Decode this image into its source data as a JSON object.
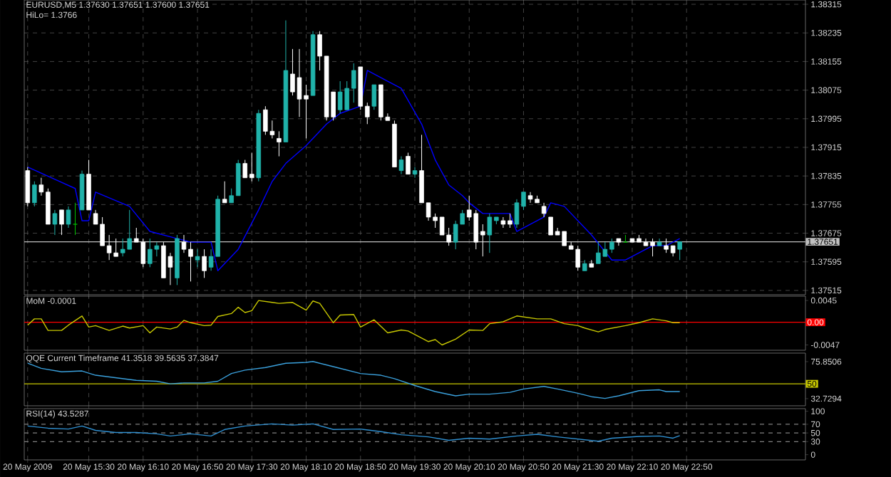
{
  "chart_data": [
    {
      "type": "candlestick",
      "title": "EURUSD,M5  1.37630 1.37651 1.37600 1.37651",
      "annotations": [
        "HiLo= 1.3766"
      ],
      "categories": [
        null,
        null,
        null,
        null,
        null,
        null,
        null,
        null,
        null,
        null,
        null,
        null,
        null,
        null,
        null,
        null,
        null,
        null,
        null,
        null,
        null,
        null,
        null,
        null,
        null,
        null,
        null,
        null,
        null,
        null,
        null,
        null,
        null,
        null,
        null,
        null,
        null,
        null,
        null,
        null,
        null,
        null,
        null,
        null,
        null,
        null,
        null,
        null,
        null,
        null,
        null,
        null,
        null,
        null,
        null,
        null,
        null,
        null,
        null,
        null,
        null,
        null,
        null,
        null,
        null,
        null,
        null,
        null,
        null,
        null,
        null,
        null,
        null,
        null,
        null,
        null,
        null,
        null,
        null,
        null,
        null,
        null,
        null,
        null,
        null,
        null,
        null,
        null,
        null,
        null,
        null,
        null,
        null,
        null,
        null,
        null,
        null,
        null,
        null,
        null,
        null,
        null,
        null,
        null,
        null,
        null,
        null,
        null,
        null,
        null,
        null,
        null,
        null,
        null,
        null
      ],
      "ohlc": [
        [
          1.3785,
          1.3786,
          1.3775,
          1.3776
        ],
        [
          1.3776,
          1.3782,
          1.3775,
          1.3781
        ],
        [
          1.3781,
          1.3783,
          1.3778,
          1.3779
        ],
        [
          1.3779,
          1.378,
          1.377,
          1.377
        ],
        [
          1.377,
          1.3774,
          1.3767,
          1.3773
        ],
        [
          1.3774,
          1.3774,
          1.3767,
          1.377
        ],
        [
          1.377,
          1.3775,
          1.3769,
          1.3774
        ],
        [
          1.377,
          1.3776,
          1.3767,
          1.377
        ],
        [
          1.3774,
          1.3785,
          1.3774,
          1.3784
        ],
        [
          1.3784,
          1.3788,
          1.3774,
          1.3774
        ],
        [
          1.3773,
          1.3774,
          1.377,
          1.377
        ],
        [
          1.377,
          1.3772,
          1.3764,
          1.3764
        ],
        [
          1.3764,
          1.3767,
          1.376,
          1.3762
        ],
        [
          1.3762,
          1.3766,
          1.3761,
          1.3761
        ],
        [
          1.3762,
          1.3766,
          1.3761,
          1.3763
        ],
        [
          1.3763,
          1.3774,
          1.3763,
          1.3766
        ],
        [
          1.3766,
          1.3769,
          1.3765,
          1.3765
        ],
        [
          1.3765,
          1.3766,
          1.3758,
          1.3759
        ],
        [
          1.3759,
          1.3766,
          1.3758,
          1.3763
        ],
        [
          1.3763,
          1.3765,
          1.3761,
          1.3764
        ],
        [
          1.3764,
          1.3765,
          1.3755,
          1.3755
        ],
        [
          1.3761,
          1.3762,
          1.3753,
          1.3758
        ],
        [
          1.3755,
          1.3767,
          1.3753,
          1.3766
        ],
        [
          1.3765,
          1.3767,
          1.3762,
          1.3763
        ],
        [
          1.3763,
          1.3765,
          1.3754,
          1.3761
        ],
        [
          1.376,
          1.3763,
          1.3758,
          1.3761
        ],
        [
          1.3761,
          1.3763,
          1.3755,
          1.3757
        ],
        [
          1.3758,
          1.3763,
          1.3757,
          1.3761
        ],
        [
          1.3761,
          1.3778,
          1.3761,
          1.3777
        ],
        [
          1.3777,
          1.3782,
          1.3776,
          1.3776
        ],
        [
          1.3776,
          1.378,
          1.3776,
          1.3778
        ],
        [
          1.3778,
          1.3788,
          1.3778,
          1.3787
        ],
        [
          1.3787,
          1.3788,
          1.3783,
          1.3783
        ],
        [
          1.3784,
          1.379,
          1.3782,
          1.3783
        ],
        [
          1.3783,
          1.3802,
          1.3782,
          1.3801
        ],
        [
          1.3802,
          1.3803,
          1.3795,
          1.3796
        ],
        [
          1.3796,
          1.3799,
          1.3794,
          1.3795
        ],
        [
          1.3794,
          1.3796,
          1.3789,
          1.3793
        ],
        [
          1.3793,
          1.3827,
          1.3793,
          1.3813
        ],
        [
          1.3812,
          1.3819,
          1.3806,
          1.3807
        ],
        [
          1.3811,
          1.3819,
          1.38,
          1.3805
        ],
        [
          1.3806,
          1.3809,
          1.3794,
          1.3805
        ],
        [
          1.3806,
          1.3824,
          1.3806,
          1.3823
        ],
        [
          1.3823,
          1.3824,
          1.3813,
          1.3817
        ],
        [
          1.3817,
          1.3817,
          1.3799,
          1.38
        ],
        [
          1.3807,
          1.3807,
          1.3799,
          1.38
        ],
        [
          1.3802,
          1.381,
          1.3801,
          1.3807
        ],
        [
          1.3802,
          1.381,
          1.3802,
          1.3808
        ],
        [
          1.3808,
          1.3815,
          1.3804,
          1.3813
        ],
        [
          1.3814,
          1.3814,
          1.3802,
          1.3803
        ],
        [
          1.3803,
          1.3804,
          1.3798,
          1.38
        ],
        [
          1.3803,
          1.3809,
          1.3802,
          1.3809
        ],
        [
          1.3809,
          1.3809,
          1.3799,
          1.38
        ],
        [
          1.38,
          1.3801,
          1.3799,
          1.3799
        ],
        [
          1.3798,
          1.3799,
          1.3786,
          1.3786
        ],
        [
          1.3785,
          1.3789,
          1.3784,
          1.3788
        ],
        [
          1.3789,
          1.379,
          1.3784,
          1.3784
        ],
        [
          1.3784,
          1.3786,
          1.3783,
          1.3785
        ],
        [
          1.3785,
          1.3795,
          1.3776,
          1.3776
        ],
        [
          1.3776,
          1.3776,
          1.3771,
          1.3772
        ],
        [
          1.3772,
          1.3773,
          1.3769,
          1.3771
        ],
        [
          1.3772,
          1.3772,
          1.3767,
          1.3767
        ],
        [
          1.3767,
          1.3769,
          1.3764,
          1.3765
        ],
        [
          1.3765,
          1.3771,
          1.3763,
          1.377
        ],
        [
          1.377,
          1.3774,
          1.377,
          1.3773
        ],
        [
          1.3774,
          1.3778,
          1.3771,
          1.3772
        ],
        [
          1.3773,
          1.3774,
          1.3763,
          1.3765
        ],
        [
          1.3768,
          1.377,
          1.3761,
          1.3767
        ],
        [
          1.3767,
          1.3773,
          1.3762,
          1.3772
        ],
        [
          1.3771,
          1.3772,
          1.377,
          1.3772
        ],
        [
          1.3771,
          1.3772,
          1.3769,
          1.377
        ],
        [
          1.3771,
          1.3773,
          1.3769,
          1.377
        ],
        [
          1.377,
          1.3777,
          1.3769,
          1.3776
        ],
        [
          1.3775,
          1.3779,
          1.3774,
          1.3779
        ],
        [
          1.3778,
          1.3779,
          1.3776,
          1.3777
        ],
        [
          1.3777,
          1.3778,
          1.3776,
          1.3776
        ],
        [
          1.3775,
          1.3776,
          1.3772,
          1.3773
        ],
        [
          1.3772,
          1.3772,
          1.3767,
          1.3767
        ],
        [
          1.3768,
          1.3769,
          1.3767,
          1.3767
        ],
        [
          1.3768,
          1.3768,
          1.3764,
          1.3764
        ],
        [
          1.3764,
          1.3765,
          1.3763,
          1.3763
        ],
        [
          1.3763,
          1.3764,
          1.3757,
          1.3758
        ],
        [
          1.3757,
          1.376,
          1.3757,
          1.3759
        ],
        [
          1.3759,
          1.376,
          1.3758,
          1.3758
        ],
        [
          1.3759,
          1.3765,
          1.3759,
          1.3762
        ],
        [
          1.3761,
          1.3765,
          1.3761,
          1.3763
        ],
        [
          1.3763,
          1.3766,
          1.3762,
          1.3765
        ],
        [
          1.3766,
          1.3766,
          1.3764,
          1.3765
        ],
        [
          1.3765,
          1.3767,
          1.3765,
          1.3765
        ],
        [
          1.3766,
          1.3766,
          1.3765,
          1.3765
        ],
        [
          1.3766,
          1.3767,
          1.3765,
          1.3765
        ],
        [
          1.3765,
          1.3766,
          1.3764,
          1.3764
        ],
        [
          1.3765,
          1.3766,
          1.3761,
          1.3764
        ],
        [
          1.3764,
          1.3766,
          1.3764,
          1.3765
        ],
        [
          1.3764,
          1.3766,
          1.3762,
          1.3763
        ],
        [
          1.3764,
          1.3764,
          1.3761,
          1.3762
        ],
        [
          1.3763,
          1.37651,
          1.376,
          1.37651
        ],
        null,
        null,
        null,
        null,
        null,
        null,
        null,
        null,
        null,
        null,
        null,
        null,
        null,
        null,
        null,
        null,
        null,
        null
      ],
      "colors": [
        "#ffffff",
        "#20b2aa",
        "#ffffff",
        "#ffffff",
        "#20b2aa",
        "#ffffff",
        "#20b2aa",
        "#00c000",
        "#20b2aa",
        "#ffffff",
        "#ffffff",
        "#ffffff",
        "#ffffff",
        "#ffffff",
        "#20b2aa",
        "#20b2aa",
        "#ffffff",
        "#ffffff",
        "#20b2aa",
        "#20b2aa",
        "#ffffff",
        "#ffffff",
        "#20b2aa",
        "#ffffff",
        "#ffffff",
        "#20b2aa",
        "#ffffff",
        "#20b2aa",
        "#20b2aa",
        "#ffffff",
        "#20b2aa",
        "#20b2aa",
        "#ffffff",
        "#ffffff",
        "#20b2aa",
        "#ffffff",
        "#ffffff",
        "#ffffff",
        "#20b2aa",
        "#ffffff",
        "#ffffff",
        "#ffffff",
        "#20b2aa",
        "#ffffff",
        "#ffffff",
        "#ffffff",
        "#20b2aa",
        "#20b2aa",
        "#20b2aa",
        "#ffffff",
        "#ffffff",
        "#20b2aa",
        "#ffffff",
        "#ffffff",
        "#ffffff",
        "#20b2aa",
        "#ffffff",
        "#20b2aa",
        "#ffffff",
        "#ffffff",
        "#ffffff",
        "#ffffff",
        "#ffffff",
        "#20b2aa",
        "#20b2aa",
        "#ffffff",
        "#ffffff",
        "#ffffff",
        "#20b2aa",
        "#20b2aa",
        "#ffffff",
        "#ffffff",
        "#20b2aa",
        "#20b2aa",
        "#ffffff",
        "#ffffff",
        "#ffffff",
        "#ffffff",
        "#ffffff",
        "#ffffff",
        "#ffffff",
        "#ffffff",
        "#20b2aa",
        "#ffffff",
        "#20b2aa",
        "#20b2aa",
        "#20b2aa",
        "#ffffff",
        "#00c000",
        "#ffffff",
        "#ffffff",
        "#ffffff",
        "#ffffff",
        "#20b2aa",
        "#ffffff",
        "#ffffff",
        "#20b2aa",
        null,
        null,
        null,
        null,
        null,
        null,
        null,
        null,
        null,
        null,
        null,
        null,
        null,
        null,
        null,
        null,
        null,
        null
      ],
      "series": [
        {
          "type": "line",
          "color": "#0000ff",
          "values": [
            1.3786,
            null,
            null,
            null,
            null,
            null,
            null,
            1.378,
            1.3771,
            1.3771,
            1.3779,
            null,
            null,
            null,
            null,
            1.3775,
            null,
            null,
            1.3768,
            null,
            null,
            null,
            1.3766,
            null,
            1.3765,
            null,
            null,
            1.3765,
            1.3757,
            null,
            null,
            1.3763,
            null,
            null,
            1.3774,
            null,
            1.3782,
            null,
            1.3787,
            null,
            null,
            1.3792,
            null,
            null,
            1.3798,
            null,
            1.3801,
            null,
            null,
            1.3803,
            1.3813,
            null,
            null,
            1.381,
            null,
            1.3808,
            null,
            null,
            1.3798,
            null,
            1.3788,
            null,
            1.3781,
            null,
            1.3778,
            1.3776,
            null,
            1.3773,
            null,
            null,
            null,
            1.3773,
            1.3768,
            null,
            null,
            null,
            1.3772,
            1.3776,
            null,
            1.3775,
            null,
            null,
            null,
            1.3767,
            null,
            null,
            1.376,
            null,
            1.376,
            null,
            null,
            null,
            1.3764,
            null,
            1.3764,
            null,
            1.3766,
            null,
            null,
            null,
            null,
            null,
            null,
            null,
            null,
            null,
            null,
            null,
            null,
            null,
            null,
            null,
            null,
            null,
            null
          ]
        }
      ],
      "ylim": [
        1.37503,
        1.38327
      ],
      "yticks": [
        1.38315,
        1.38235,
        1.38155,
        1.38075,
        1.37995,
        1.37915,
        1.37835,
        1.37755,
        1.37675,
        1.37595,
        1.37515
      ],
      "ref_lines": [
        {
          "axis": "y",
          "value": 1.37651,
          "label": "1.37651",
          "color": "#c0c0c0"
        }
      ],
      "grid": true,
      "tick_labels": "y"
    },
    {
      "type": "line",
      "title": "MoM -0.0001",
      "color": "#c8c800",
      "categories": [
        null,
        null,
        null,
        null,
        null,
        null,
        null,
        null,
        null,
        null,
        null,
        null,
        null,
        null,
        null,
        null,
        null,
        null,
        null,
        null,
        null,
        null,
        null,
        null,
        null,
        null,
        null,
        null,
        null,
        null,
        null,
        null,
        null,
        null,
        null,
        null,
        null,
        null,
        null,
        null,
        null,
        null,
        null,
        null,
        null,
        null,
        null,
        null,
        null,
        null,
        null,
        null,
        null,
        null,
        null,
        null,
        null,
        null,
        null,
        null,
        null,
        null,
        null,
        null,
        null,
        null,
        null,
        null,
        null,
        null,
        null,
        null,
        null,
        null,
        null,
        null,
        null,
        null,
        null,
        null,
        null,
        null,
        null,
        null,
        null,
        null,
        null,
        null,
        null,
        null,
        null,
        null,
        null,
        null,
        null,
        null,
        null,
        null,
        null,
        null,
        null,
        null,
        null,
        null,
        null,
        null,
        null,
        null,
        null,
        null,
        null,
        null,
        null,
        null,
        null
      ],
      "values": [
        -0.0006,
        0.0007,
        0.0007,
        -0.0017,
        null,
        -0.0017,
        -0.0006,
        null,
        0.0013,
        -0.001,
        -0.0007,
        null,
        -0.0017,
        null,
        -0.0008,
        -0.0012,
        null,
        -0.0007,
        -0.0022,
        -0.001,
        null,
        -0.0014,
        -0.001,
        0.0004,
        -0.0001,
        null,
        -0.0007,
        -0.0006,
        0.0012,
        null,
        0.0018,
        0.0031,
        0.002,
        0.0024,
        0.0045,
        null,
        0.0041,
        0.0039,
        null,
        0.0041,
        null,
        0.0025,
        0.0044,
        0.0039,
        null,
        -0.0001,
        0.0015,
        null,
        0.0016,
        -0.001,
        null,
        0.0005,
        null,
        -0.0022,
        null,
        -0.0016,
        -0.0018,
        null,
        null,
        -0.004,
        -0.0036,
        -0.0047,
        null,
        -0.0035,
        null,
        -0.0016,
        null,
        -0.0017,
        -0.0003,
        null,
        0.0001,
        null,
        0.0013,
        null,
        null,
        0.0007,
        null,
        0.0007,
        null,
        -0.0003,
        null,
        -0.0007,
        -0.0012,
        null,
        -0.002,
        -0.0015,
        null,
        null,
        -0.0007,
        null,
        -0.0001,
        null,
        0.0007,
        null,
        0.0003,
        -0.0001,
        -0.0001,
        null,
        null,
        null,
        null,
        null,
        null,
        null,
        null,
        null,
        null,
        null,
        null,
        null,
        null,
        null,
        null,
        null,
        null
      ],
      "ylim": [
        -0.0058,
        0.0054
      ],
      "yticks": [
        0.0045,
        -0.0047
      ],
      "ref_lines": [
        {
          "axis": "y",
          "value": 0,
          "label": "0.00",
          "color": "#ff0000"
        }
      ],
      "grid": "x",
      "tick_labels": "y"
    },
    {
      "type": "line",
      "title": "QQE Current Timeframe 41.3518 39.5635 37.3847",
      "color": "#3aa0dc",
      "categories": [
        null,
        null,
        null,
        null,
        null,
        null,
        null,
        null,
        null,
        null,
        null,
        null,
        null,
        null,
        null,
        null,
        null,
        null,
        null,
        null,
        null,
        null,
        null,
        null,
        null,
        null,
        null,
        null,
        null,
        null,
        null,
        null,
        null,
        null,
        null,
        null,
        null,
        null,
        null,
        null,
        null,
        null,
        null,
        null,
        null,
        null,
        null,
        null,
        null,
        null,
        null,
        null,
        null,
        null,
        null,
        null,
        null,
        null,
        null,
        null,
        null,
        null,
        null,
        null,
        null,
        null,
        null,
        null,
        null,
        null,
        null,
        null,
        null,
        null,
        null,
        null,
        null,
        null,
        null,
        null,
        null,
        null,
        null,
        null,
        null,
        null,
        null,
        null,
        null,
        null,
        null,
        null,
        null,
        null,
        null,
        null,
        null,
        null,
        null,
        null,
        null,
        null,
        null,
        null,
        null,
        null,
        null,
        null,
        null,
        null,
        null,
        null,
        null,
        null,
        null
      ],
      "values": [
        74,
        null,
        68,
        null,
        null,
        64,
        null,
        null,
        65,
        null,
        60,
        null,
        null,
        57,
        null,
        null,
        54,
        null,
        null,
        53,
        null,
        50,
        null,
        51,
        null,
        null,
        51,
        null,
        53,
        null,
        62,
        null,
        66,
        null,
        null,
        69,
        null,
        null,
        74,
        null,
        null,
        75,
        76,
        null,
        null,
        70,
        null,
        null,
        null,
        62,
        null,
        null,
        60,
        null,
        56,
        null,
        null,
        48,
        null,
        null,
        41,
        null,
        null,
        36,
        null,
        38,
        null,
        null,
        38,
        null,
        null,
        40,
        null,
        44,
        null,
        null,
        47,
        null,
        44,
        null,
        null,
        39,
        null,
        35,
        null,
        33,
        null,
        36,
        null,
        null,
        42,
        null,
        null,
        43,
        41,
        null,
        41,
        null,
        null,
        null,
        null,
        null,
        null,
        null,
        null,
        null,
        null,
        null,
        null,
        null,
        null,
        null,
        null,
        null,
        null
      ],
      "ylim": [
        24.4,
        85.8
      ],
      "yticks": [
        75.8506,
        32.7294
      ],
      "ref_lines": [
        {
          "axis": "y",
          "value": 50,
          "label": "50",
          "color": "#c8c800"
        }
      ],
      "grid": "x",
      "tick_labels": "y"
    },
    {
      "type": "line",
      "title": "RSI(14) 43.5287",
      "color": "#2f8fd0",
      "categories": [
        "20 May 2009",
        null,
        null,
        null,
        null,
        null,
        null,
        null,
        null,
        "20 May 15:30",
        null,
        null,
        null,
        null,
        null,
        null,
        null,
        "20 May 16:10",
        null,
        null,
        null,
        null,
        null,
        null,
        null,
        "20 May 16:50",
        null,
        null,
        null,
        null,
        null,
        null,
        null,
        "20 May 17:30",
        null,
        null,
        null,
        null,
        null,
        null,
        null,
        "20 May 18:10",
        null,
        null,
        null,
        null,
        null,
        null,
        null,
        "20 May 18:50",
        null,
        null,
        null,
        null,
        null,
        null,
        null,
        "20 May 19:30",
        null,
        null,
        null,
        null,
        null,
        null,
        null,
        "20 May 20:10",
        null,
        null,
        null,
        null,
        null,
        null,
        null,
        "20 May 20:50",
        null,
        null,
        null,
        null,
        null,
        null,
        null,
        "20 May 21:30",
        null,
        null,
        null,
        null,
        null,
        null,
        null,
        "20 May 22:10",
        null,
        null,
        null,
        null,
        null,
        null,
        null,
        "20 May 22:50",
        null,
        null,
        null,
        null,
        null,
        null,
        null,
        null,
        null,
        null,
        null,
        null,
        null,
        null,
        null,
        null,
        null
      ],
      "values": [
        66,
        null,
        null,
        61,
        null,
        null,
        59,
        null,
        66,
        null,
        56,
        null,
        null,
        51,
        null,
        null,
        51,
        null,
        null,
        48,
        null,
        43,
        null,
        null,
        48,
        null,
        null,
        43,
        null,
        58,
        null,
        null,
        66,
        null,
        null,
        null,
        71,
        null,
        null,
        68,
        null,
        null,
        71,
        null,
        null,
        58,
        null,
        null,
        null,
        59,
        null,
        null,
        53,
        null,
        null,
        46,
        null,
        null,
        null,
        41,
        null,
        null,
        33,
        null,
        null,
        38,
        null,
        null,
        36,
        null,
        null,
        null,
        43,
        null,
        null,
        47,
        null,
        null,
        41,
        null,
        null,
        36,
        null,
        null,
        31,
        null,
        38,
        null,
        null,
        null,
        42,
        null,
        null,
        43,
        null,
        38,
        44,
        null,
        null,
        null,
        null,
        null,
        null,
        null,
        null,
        null,
        null,
        null,
        null,
        null,
        null,
        null,
        null,
        null,
        null
      ],
      "ylim": [
        -12,
        106
      ],
      "yticks": [
        100,
        70,
        50,
        30,
        0
      ],
      "ref_lines": [
        {
          "axis": "y",
          "value": 70,
          "color": "#808080",
          "line_style": "dashed"
        },
        {
          "axis": "y",
          "value": 50,
          "color": "#808080",
          "line_style": "dashed"
        },
        {
          "axis": "y",
          "value": 30,
          "color": "#808080",
          "line_style": "dashed"
        }
      ],
      "grid": "x"
    }
  ]
}
